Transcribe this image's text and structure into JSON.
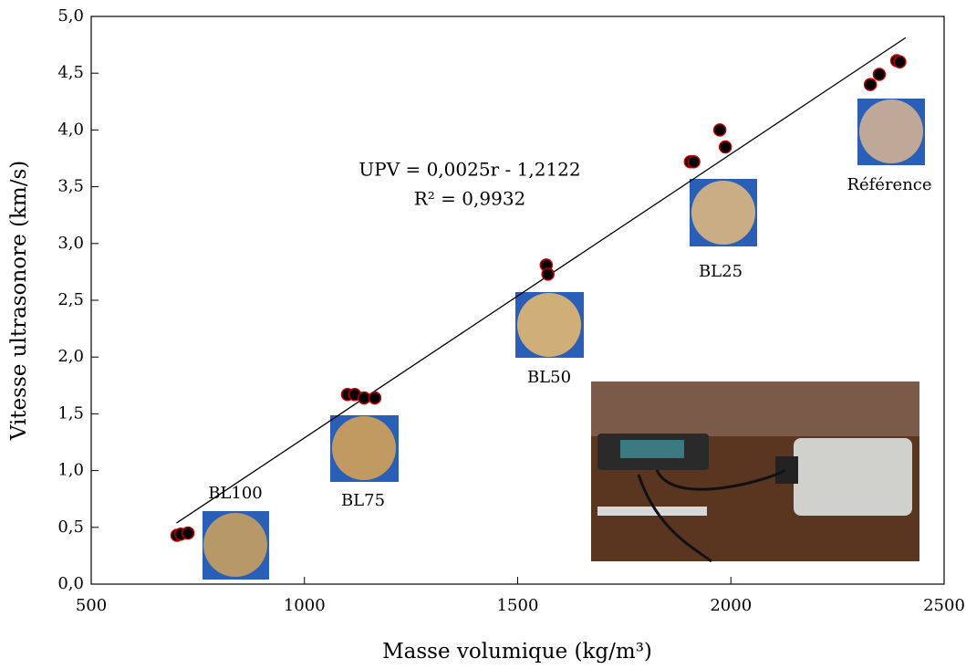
{
  "chart_data": {
    "type": "scatter",
    "x_label": "Masse volumique (kg/m³)",
    "y_label": "Vitesse ultrasonore (km/s)",
    "xlim": [
      500,
      2500
    ],
    "xticks": [
      500,
      1000,
      1500,
      2000,
      2500
    ],
    "ylim": [
      0,
      5
    ],
    "yticks": [
      {
        "value": 0,
        "label": "0,0"
      },
      {
        "value": 0.5,
        "label": "0,5"
      },
      {
        "value": 1,
        "label": "1,0"
      },
      {
        "value": 1.5,
        "label": "1,5"
      },
      {
        "value": 2,
        "label": "2,0"
      },
      {
        "value": 2.5,
        "label": "2,5"
      },
      {
        "value": 3,
        "label": "3,0"
      },
      {
        "value": 3.5,
        "label": "3,5"
      },
      {
        "value": 4,
        "label": "4,0"
      },
      {
        "value": 4.5,
        "label": "4,5"
      },
      {
        "value": 5,
        "label": "5,0"
      }
    ],
    "series": [
      {
        "color": "#000000",
        "edge_color": "#c00000",
        "x": [
          701,
          710,
          727,
          1101,
          1118,
          1140,
          1165,
          1567,
          1571,
          1905,
          1913,
          1974,
          1987,
          2327,
          2348,
          2389,
          2396
        ],
        "values": [
          0.43,
          0.44,
          0.45,
          1.67,
          1.67,
          1.64,
          1.64,
          2.81,
          2.73,
          3.72,
          3.72,
          4.0,
          3.85,
          4.4,
          4.49,
          4.61,
          4.6
        ]
      }
    ],
    "trendline": {
      "x": [
        700,
        2410
      ],
      "values": [
        0.538,
        4.813
      ],
      "color": "#000000"
    },
    "annotations": [
      "UPV = 0,0025r - 1,2122",
      "R² = 0,9932",
      "BL100",
      "BL75",
      "BL50",
      "BL25",
      "Référence"
    ]
  }
}
